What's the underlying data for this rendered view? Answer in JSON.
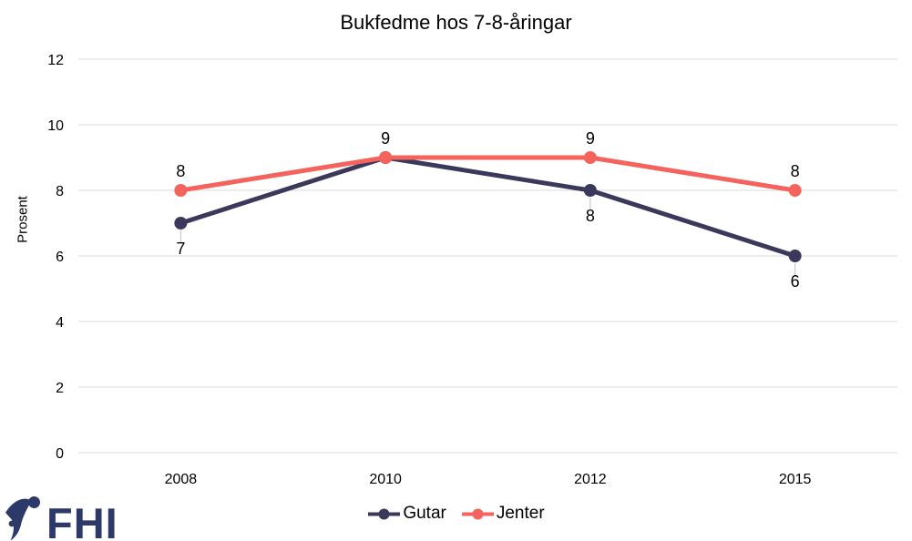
{
  "chart_data": {
    "type": "line",
    "title": "Bukfedme hos 7-8-åringar",
    "xlabel": "",
    "ylabel": "Prosent",
    "x_categories": [
      "2008",
      "2010",
      "2012",
      "2015"
    ],
    "y_ticks": [
      0,
      2,
      4,
      6,
      8,
      10,
      12
    ],
    "ylim": [
      0,
      12
    ],
    "grid": "horizontal",
    "legend_position": "bottom-center",
    "series": [
      {
        "name": "Gutar",
        "color": "#3A395C",
        "values": [
          7,
          9,
          8,
          6
        ],
        "data_labels": [
          "7",
          "9",
          "8",
          "6"
        ],
        "label_positions": [
          "below",
          "none",
          "below",
          "below"
        ]
      },
      {
        "name": "Jenter",
        "color": "#F4645C",
        "values": [
          8,
          9,
          9,
          8
        ],
        "data_labels": [
          "8",
          "9",
          "9",
          "8"
        ],
        "label_positions": [
          "above",
          "above",
          "above",
          "above"
        ]
      }
    ]
  },
  "colors": {
    "grid": "#D9D9D9",
    "leader": "#BFBFBF",
    "text": "#000000",
    "logo": "#2D3A69"
  },
  "logo": {
    "text": "FHI"
  }
}
